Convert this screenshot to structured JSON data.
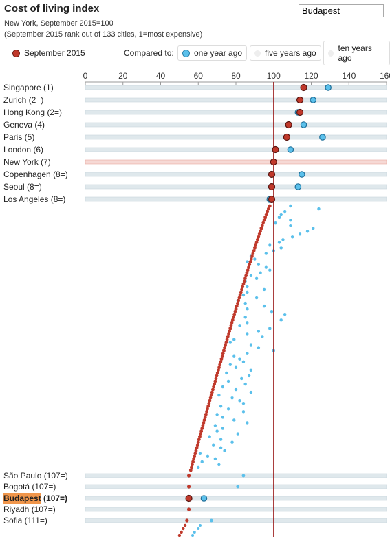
{
  "header": {
    "title": "Cost of living index",
    "subtitle1": "New York, September 2015=100",
    "subtitle2": "(September 2015 rank out of 133 cities, 1=most expensive)",
    "search_value": "Budapest"
  },
  "legend": {
    "current": "September 2015",
    "compared_to": "Compared to:",
    "options": [
      {
        "label": "one year ago",
        "selected": true
      },
      {
        "label": "five years ago",
        "selected": false
      },
      {
        "label": "ten years ago",
        "selected": false
      }
    ]
  },
  "colors": {
    "current": "#c0392b",
    "comparison": "#5bc0eb",
    "reference_line": "#9b1c1c",
    "highlight": "#f0964b",
    "row_band": "#dfe8ec"
  },
  "chart_data": {
    "type": "scatter",
    "xlim": [
      0,
      160
    ],
    "xticks": [
      0,
      20,
      40,
      60,
      80,
      100,
      120,
      140,
      160
    ],
    "reference_value": 100,
    "series": [
      {
        "name": "September 2015"
      },
      {
        "name": "one year ago"
      }
    ],
    "labeled_cities": [
      {
        "label": "Singapore (1)",
        "sep2015": 116,
        "one_year_ago": 129
      },
      {
        "label": "Zurich (2=)",
        "sep2015": 114,
        "one_year_ago": 121
      },
      {
        "label": "Hong Kong (2=)",
        "sep2015": 114,
        "one_year_ago": 113
      },
      {
        "label": "Geneva (4)",
        "sep2015": 108,
        "one_year_ago": 116
      },
      {
        "label": "Paris (5)",
        "sep2015": 107,
        "one_year_ago": 126
      },
      {
        "label": "London (6)",
        "sep2015": 101,
        "one_year_ago": 109
      },
      {
        "label": "New York (7)",
        "sep2015": 100,
        "one_year_ago": 100,
        "reference": true
      },
      {
        "label": "Copenhagen (8=)",
        "sep2015": 99,
        "one_year_ago": 115
      },
      {
        "label": "Seoul (8=)",
        "sep2015": 99,
        "one_year_ago": 113
      },
      {
        "label": "Los Angeles (8=)",
        "sep2015": 99,
        "one_year_ago": 98
      }
    ],
    "lower_cities": [
      {
        "label": "São Paulo (107=)",
        "sep2015": 55,
        "one_year_ago": 84
      },
      {
        "label": "Bogotá (107=)",
        "sep2015": 55,
        "one_year_ago": 81
      },
      {
        "label": "Budapest (107=)",
        "sep2015": 55,
        "one_year_ago": 63,
        "highlight": true
      },
      {
        "label": "Riyadh (107=)",
        "sep2015": 55,
        "one_year_ago": null
      },
      {
        "label": "Sofia (111=)",
        "sep2015": 54,
        "one_year_ago": 67
      }
    ],
    "compressed_rows": {
      "count": 96,
      "sep2015_start": 98,
      "sep2015_end": 56,
      "one_year_ago": [
        109,
        124,
        106,
        104,
        103,
        109,
        101,
        109,
        121,
        118,
        114,
        110,
        105,
        103,
        98,
        104,
        100,
        96,
        88,
        90,
        86,
        92,
        96,
        98,
        93,
        88,
        91,
        85,
        84,
        86,
        95,
        86,
        84,
        91,
        81,
        85,
        95,
        86,
        99,
        106,
        85,
        104,
        86,
        82,
        98,
        92,
        86,
        94,
        79,
        77,
        88,
        92,
        100,
        86,
        79,
        82,
        84,
        77,
        80,
        88,
        75,
        87,
        83,
        76,
        85,
        73,
        80,
        88,
        71,
        78,
        82,
        84,
        72,
        76,
        84,
        70,
        73,
        79,
        86,
        69,
        73,
        70,
        81,
        66,
        72,
        78,
        68,
        72,
        74,
        61,
        65,
        69,
        62,
        71,
        60,
        56
      ]
    },
    "tail_rows": {
      "count": 4,
      "sep2015": [
        53,
        52,
        51,
        50
      ],
      "one_year_ago": [
        61,
        60,
        58,
        57
      ]
    }
  }
}
